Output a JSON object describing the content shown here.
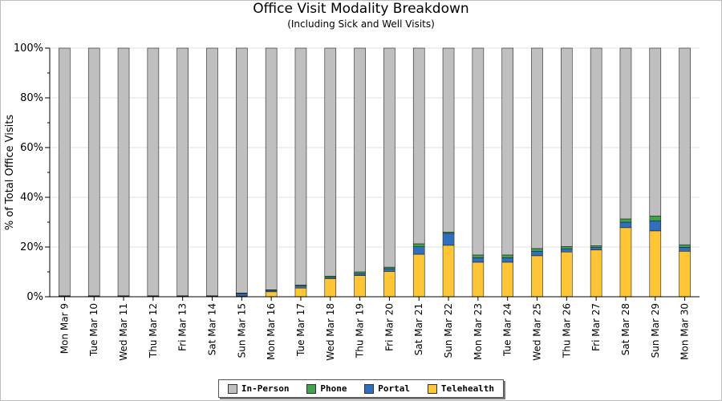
{
  "chart_data": {
    "type": "bar",
    "stacked": true,
    "title": "Office Visit Modality Breakdown",
    "subtitle": "(Including Sick and Well Visits)",
    "ylabel": "% of Total Office Visits",
    "ylim": [
      0,
      100
    ],
    "yticks": [
      "0%",
      "20%",
      "40%",
      "60%",
      "80%",
      "100%"
    ],
    "categories": [
      "Mon Mar 9",
      "Tue Mar 10",
      "Wed Mar 11",
      "Thu Mar 12",
      "Fri Mar 13",
      "Sat Mar 14",
      "Sun Mar 15",
      "Mon Mar 16",
      "Tue Mar 17",
      "Wed Mar 18",
      "Thu Mar 19",
      "Fri Mar 20",
      "Sat Mar 21",
      "Sun Mar 22",
      "Mon Mar 23",
      "Tue Mar 24",
      "Wed Mar 25",
      "Thu Mar 26",
      "Fri Mar 27",
      "Sat Mar 28",
      "Sun Mar 29",
      "Mon Mar 30"
    ],
    "series": [
      {
        "name": "Telehealth",
        "color": "#fec536",
        "values": [
          0.2,
          0.2,
          0.2,
          0.2,
          0.2,
          0.2,
          0.3,
          2.0,
          3.5,
          7.3,
          8.5,
          10.2,
          17.1,
          20.7,
          13.9,
          13.9,
          16.5,
          18.0,
          18.8,
          27.8,
          26.5,
          18.3
        ]
      },
      {
        "name": "Portal",
        "color": "#2f6fbf",
        "values": [
          0.1,
          0.1,
          0.1,
          0.1,
          0.1,
          0.1,
          1.0,
          0.6,
          0.8,
          0.5,
          0.8,
          1.1,
          3.0,
          4.8,
          1.8,
          1.8,
          1.8,
          1.3,
          1.0,
          2.2,
          4.0,
          1.6
        ]
      },
      {
        "name": "Phone",
        "color": "#3fa34d",
        "values": [
          0.1,
          0.1,
          0.1,
          0.1,
          0.1,
          0.1,
          0.2,
          0.2,
          0.4,
          0.5,
          0.7,
          0.6,
          1.2,
          0.5,
          1.1,
          1.1,
          1.1,
          0.9,
          0.7,
          1.3,
          2.0,
          1.0
        ]
      },
      {
        "name": "In-Person",
        "color": "#bfbfbf",
        "values": [
          99.6,
          99.6,
          99.6,
          99.6,
          99.6,
          99.6,
          98.5,
          97.2,
          95.3,
          91.7,
          90.0,
          88.1,
          78.7,
          74.0,
          83.2,
          83.2,
          80.6,
          79.8,
          79.5,
          68.7,
          67.5,
          79.1
        ]
      }
    ],
    "legend": {
      "placement": "bottom-center",
      "items": [
        {
          "name": "In-Person",
          "color": "#bfbfbf"
        },
        {
          "name": "Phone",
          "color": "#3fa34d"
        },
        {
          "name": "Portal",
          "color": "#2f6fbf"
        },
        {
          "name": "Telehealth",
          "color": "#fec536"
        }
      ]
    },
    "grid": true
  }
}
